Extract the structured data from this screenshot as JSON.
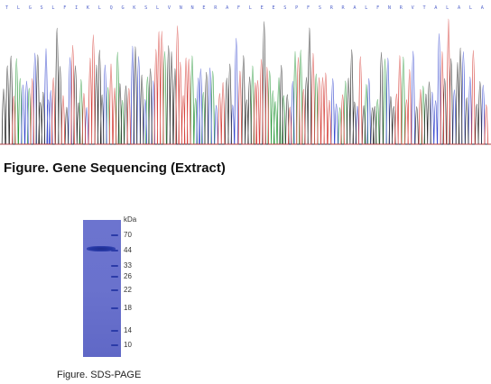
{
  "figures": {
    "sequencing": {
      "caption": "Figure. Gene Sequencing (Extract)",
      "sequence_letters": "TLGSLFIKLQGKSLVNNERAFLEESPFSRRALFNRVTALALAERRIRLRLRHTASLTSLSLKLAVNS",
      "trace_colors": {
        "A": "#2e9b3f",
        "C": "#3b4ccf",
        "G": "#2b2b2b",
        "T": "#d6423c"
      }
    },
    "sds_page": {
      "caption": "Figure. SDS-PAGE",
      "unit_label": "kDa",
      "markers": [
        "70",
        "44",
        "33",
        "26",
        "22",
        "18",
        "14",
        "10"
      ],
      "gel_color": "#6a72cd",
      "band_color": "#24359f"
    }
  }
}
